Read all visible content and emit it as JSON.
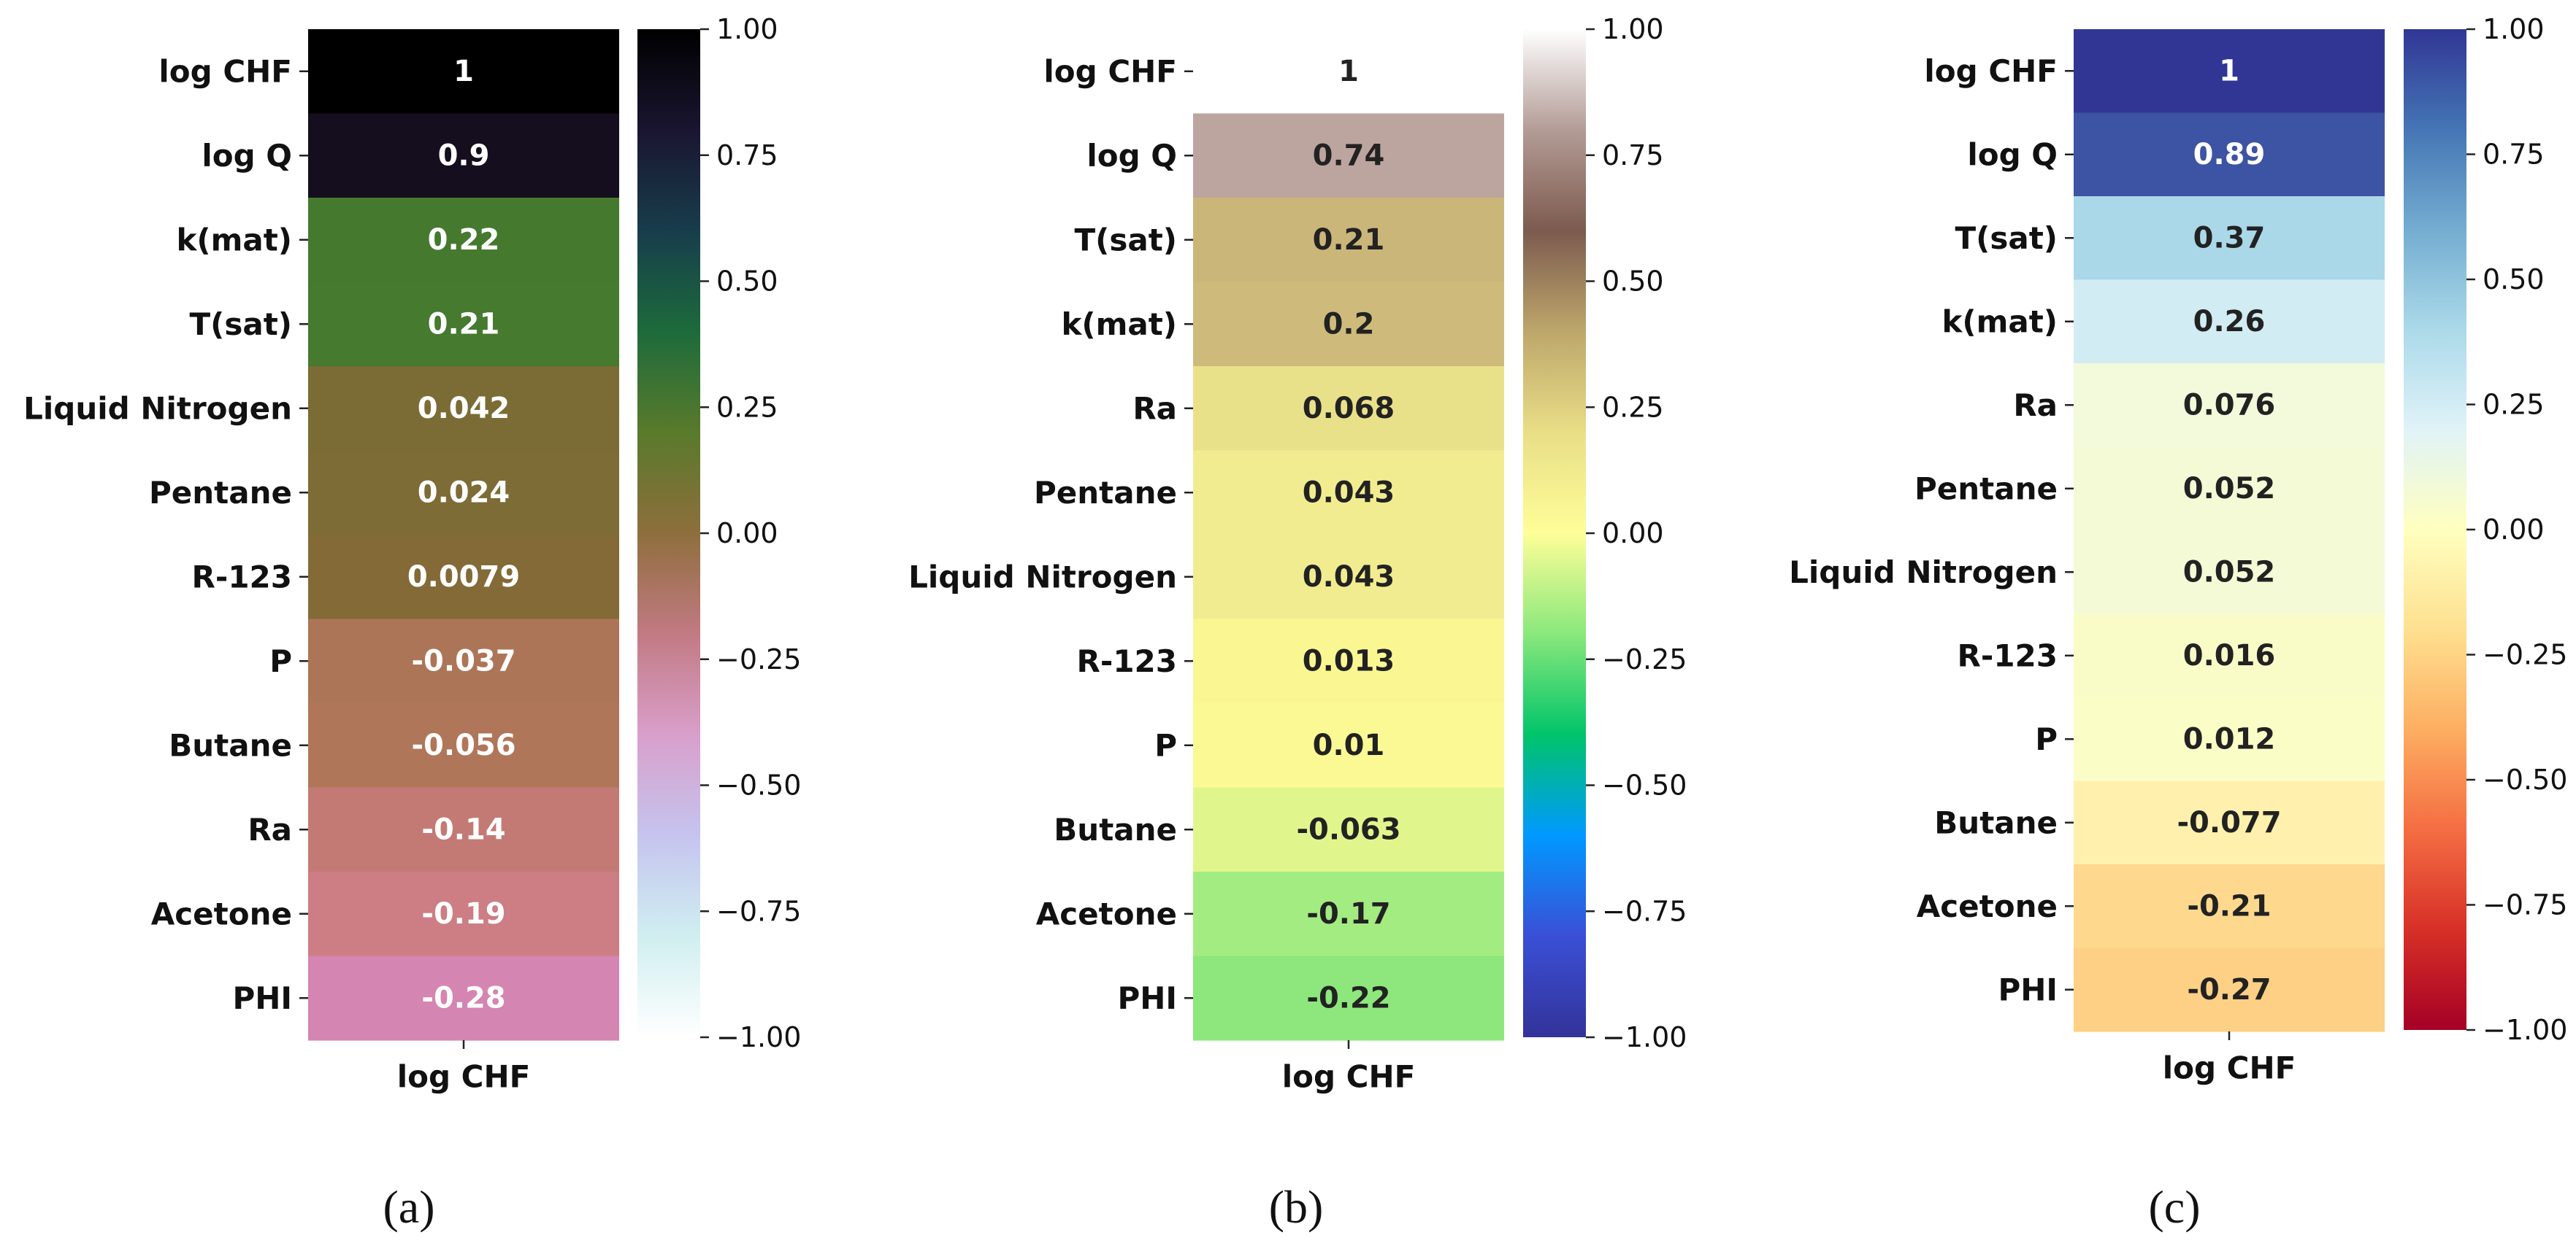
{
  "chart_data": [
    {
      "type": "heatmap",
      "caption": "(a)",
      "column_label": "log CHF",
      "colorbar": {
        "cmap": "cubehelix_r",
        "vmin": -1.0,
        "vmax": 1.0,
        "ticks": [
          1.0,
          0.75,
          0.5,
          0.25,
          0.0,
          -0.25,
          -0.5,
          -0.75,
          -1.0
        ],
        "tick_labels": [
          "1.00",
          "0.75",
          "0.50",
          "0.25",
          "0.00",
          "−0.25",
          "−0.50",
          "−0.75",
          "−1.00"
        ],
        "gradient_stops": [
          "#000000",
          "#1a1530",
          "#173d4b",
          "#1d6b3c",
          "#597a2b",
          "#8e6e3c",
          "#c27a83",
          "#d99fcb",
          "#c5c4ef",
          "#d0eef0",
          "#ffffff"
        ]
      },
      "rows": [
        {
          "label": "log CHF",
          "value": 1,
          "display": "1",
          "fill": "#000000",
          "text_color": "#ffffff"
        },
        {
          "label": "log Q",
          "value": 0.9,
          "display": "0.9",
          "fill": "#140e1e",
          "text_color": "#ffffff"
        },
        {
          "label": "k(mat)",
          "value": 0.22,
          "display": "0.22",
          "fill": "#457a2e",
          "text_color": "#ffffff"
        },
        {
          "label": "T(sat)",
          "value": 0.21,
          "display": "0.21",
          "fill": "#467a2e",
          "text_color": "#ffffff"
        },
        {
          "label": "Liquid Nitrogen",
          "value": 0.042,
          "display": "0.042",
          "fill": "#7a6c34",
          "text_color": "#ffffff"
        },
        {
          "label": "Pentane",
          "value": 0.024,
          "display": "0.024",
          "fill": "#7d6c35",
          "text_color": "#ffffff"
        },
        {
          "label": "R-123",
          "value": 0.0079,
          "display": "0.0079",
          "fill": "#836a37",
          "text_color": "#ffffff"
        },
        {
          "label": "P",
          "value": -0.037,
          "display": "-0.037",
          "fill": "#ad7557",
          "text_color": "#ffffff"
        },
        {
          "label": "Butane",
          "value": -0.056,
          "display": "-0.056",
          "fill": "#b0765a",
          "text_color": "#ffffff"
        },
        {
          "label": "Ra",
          "value": -0.14,
          "display": "-0.14",
          "fill": "#c47a74",
          "text_color": "#ffffff"
        },
        {
          "label": "Acetone",
          "value": -0.19,
          "display": "-0.19",
          "fill": "#cc7e84",
          "text_color": "#ffffff"
        },
        {
          "label": "PHI",
          "value": -0.28,
          "display": "-0.28",
          "fill": "#d585b1",
          "text_color": "#ffffff"
        }
      ]
    },
    {
      "type": "heatmap",
      "caption": "(b)",
      "column_label": "log CHF",
      "colorbar": {
        "cmap": "terrain",
        "vmin": -1.0,
        "vmax": 1.0,
        "ticks": [
          1.0,
          0.75,
          0.5,
          0.25,
          0.0,
          -0.25,
          -0.5,
          -0.75,
          -1.0
        ],
        "tick_labels": [
          "1.00",
          "0.75",
          "0.50",
          "0.25",
          "0.00",
          "−0.25",
          "−0.50",
          "−0.75",
          "−1.00"
        ],
        "gradient_stops": [
          "#ffffff",
          "#b39c96",
          "#7d5a4f",
          "#bda76b",
          "#e9de87",
          "#fefe98",
          "#8ae87c",
          "#00c46a",
          "#0099ff",
          "#3a4fd6",
          "#333399"
        ]
      },
      "rows": [
        {
          "label": "log CHF",
          "value": 1,
          "display": "1",
          "fill": "#ffffff",
          "text_color": "#222222"
        },
        {
          "label": "log Q",
          "value": 0.74,
          "display": "0.74",
          "fill": "#bda59f",
          "text_color": "#222222"
        },
        {
          "label": "T(sat)",
          "value": 0.21,
          "display": "0.21",
          "fill": "#cbb679",
          "text_color": "#222222"
        },
        {
          "label": "k(mat)",
          "value": 0.2,
          "display": "0.2",
          "fill": "#cebb7b",
          "text_color": "#222222"
        },
        {
          "label": "Ra",
          "value": 0.068,
          "display": "0.068",
          "fill": "#e9e08a",
          "text_color": "#222222"
        },
        {
          "label": "Pentane",
          "value": 0.043,
          "display": "0.043",
          "fill": "#f1ec90",
          "text_color": "#222222"
        },
        {
          "label": "Liquid Nitrogen",
          "value": 0.043,
          "display": "0.043",
          "fill": "#f1ec90",
          "text_color": "#222222"
        },
        {
          "label": "R-123",
          "value": 0.013,
          "display": "0.013",
          "fill": "#faf793",
          "text_color": "#222222"
        },
        {
          "label": "P",
          "value": 0.01,
          "display": "0.01",
          "fill": "#fbf994",
          "text_color": "#222222"
        },
        {
          "label": "Butane",
          "value": -0.063,
          "display": "-0.063",
          "fill": "#e0f68d",
          "text_color": "#222222"
        },
        {
          "label": "Acetone",
          "value": -0.17,
          "display": "-0.17",
          "fill": "#a3ec82",
          "text_color": "#222222"
        },
        {
          "label": "PHI",
          "value": -0.22,
          "display": "-0.22",
          "fill": "#8de77c",
          "text_color": "#222222"
        }
      ]
    },
    {
      "type": "heatmap",
      "caption": "(c)",
      "column_label": "log CHF",
      "colorbar": {
        "cmap": "RdYlBu",
        "vmin": -1.0,
        "vmax": 1.0,
        "ticks": [
          1.0,
          0.75,
          0.5,
          0.25,
          0.0,
          -0.25,
          -0.5,
          -0.75,
          -1.0
        ],
        "tick_labels": [
          "1.00",
          "0.75",
          "0.50",
          "0.25",
          "0.00",
          "−0.25",
          "−0.50",
          "−0.75",
          "−1.00"
        ],
        "gradient_stops": [
          "#313695",
          "#4575b4",
          "#74add1",
          "#abd9e9",
          "#e0f3f8",
          "#ffffbf",
          "#fee090",
          "#fdae61",
          "#f46d43",
          "#d73027",
          "#a50026"
        ]
      },
      "rows": [
        {
          "label": "log CHF",
          "value": 1,
          "display": "1",
          "fill": "#313695",
          "text_color": "#ffffff"
        },
        {
          "label": "log Q",
          "value": 0.89,
          "display": "0.89",
          "fill": "#3d53a3",
          "text_color": "#ffffff"
        },
        {
          "label": "T(sat)",
          "value": 0.37,
          "display": "0.37",
          "fill": "#aad8e8",
          "text_color": "#222222"
        },
        {
          "label": "k(mat)",
          "value": 0.26,
          "display": "0.26",
          "fill": "#d1ecf3",
          "text_color": "#222222"
        },
        {
          "label": "Ra",
          "value": 0.076,
          "display": "0.076",
          "fill": "#f3f9db",
          "text_color": "#222222"
        },
        {
          "label": "Pentane",
          "value": 0.052,
          "display": "0.052",
          "fill": "#f5fad6",
          "text_color": "#222222"
        },
        {
          "label": "Liquid Nitrogen",
          "value": 0.052,
          "display": "0.052",
          "fill": "#f5fad6",
          "text_color": "#222222"
        },
        {
          "label": "R-123",
          "value": 0.016,
          "display": "0.016",
          "fill": "#fafcc8",
          "text_color": "#222222"
        },
        {
          "label": "P",
          "value": 0.012,
          "display": "0.012",
          "fill": "#fbfdc6",
          "text_color": "#222222"
        },
        {
          "label": "Butane",
          "value": -0.077,
          "display": "-0.077",
          "fill": "#fff1ad",
          "text_color": "#222222"
        },
        {
          "label": "Acetone",
          "value": -0.21,
          "display": "-0.21",
          "fill": "#fed88d",
          "text_color": "#222222"
        },
        {
          "label": "PHI",
          "value": -0.27,
          "display": "-0.27",
          "fill": "#fdd085",
          "text_color": "#222222"
        }
      ]
    }
  ]
}
